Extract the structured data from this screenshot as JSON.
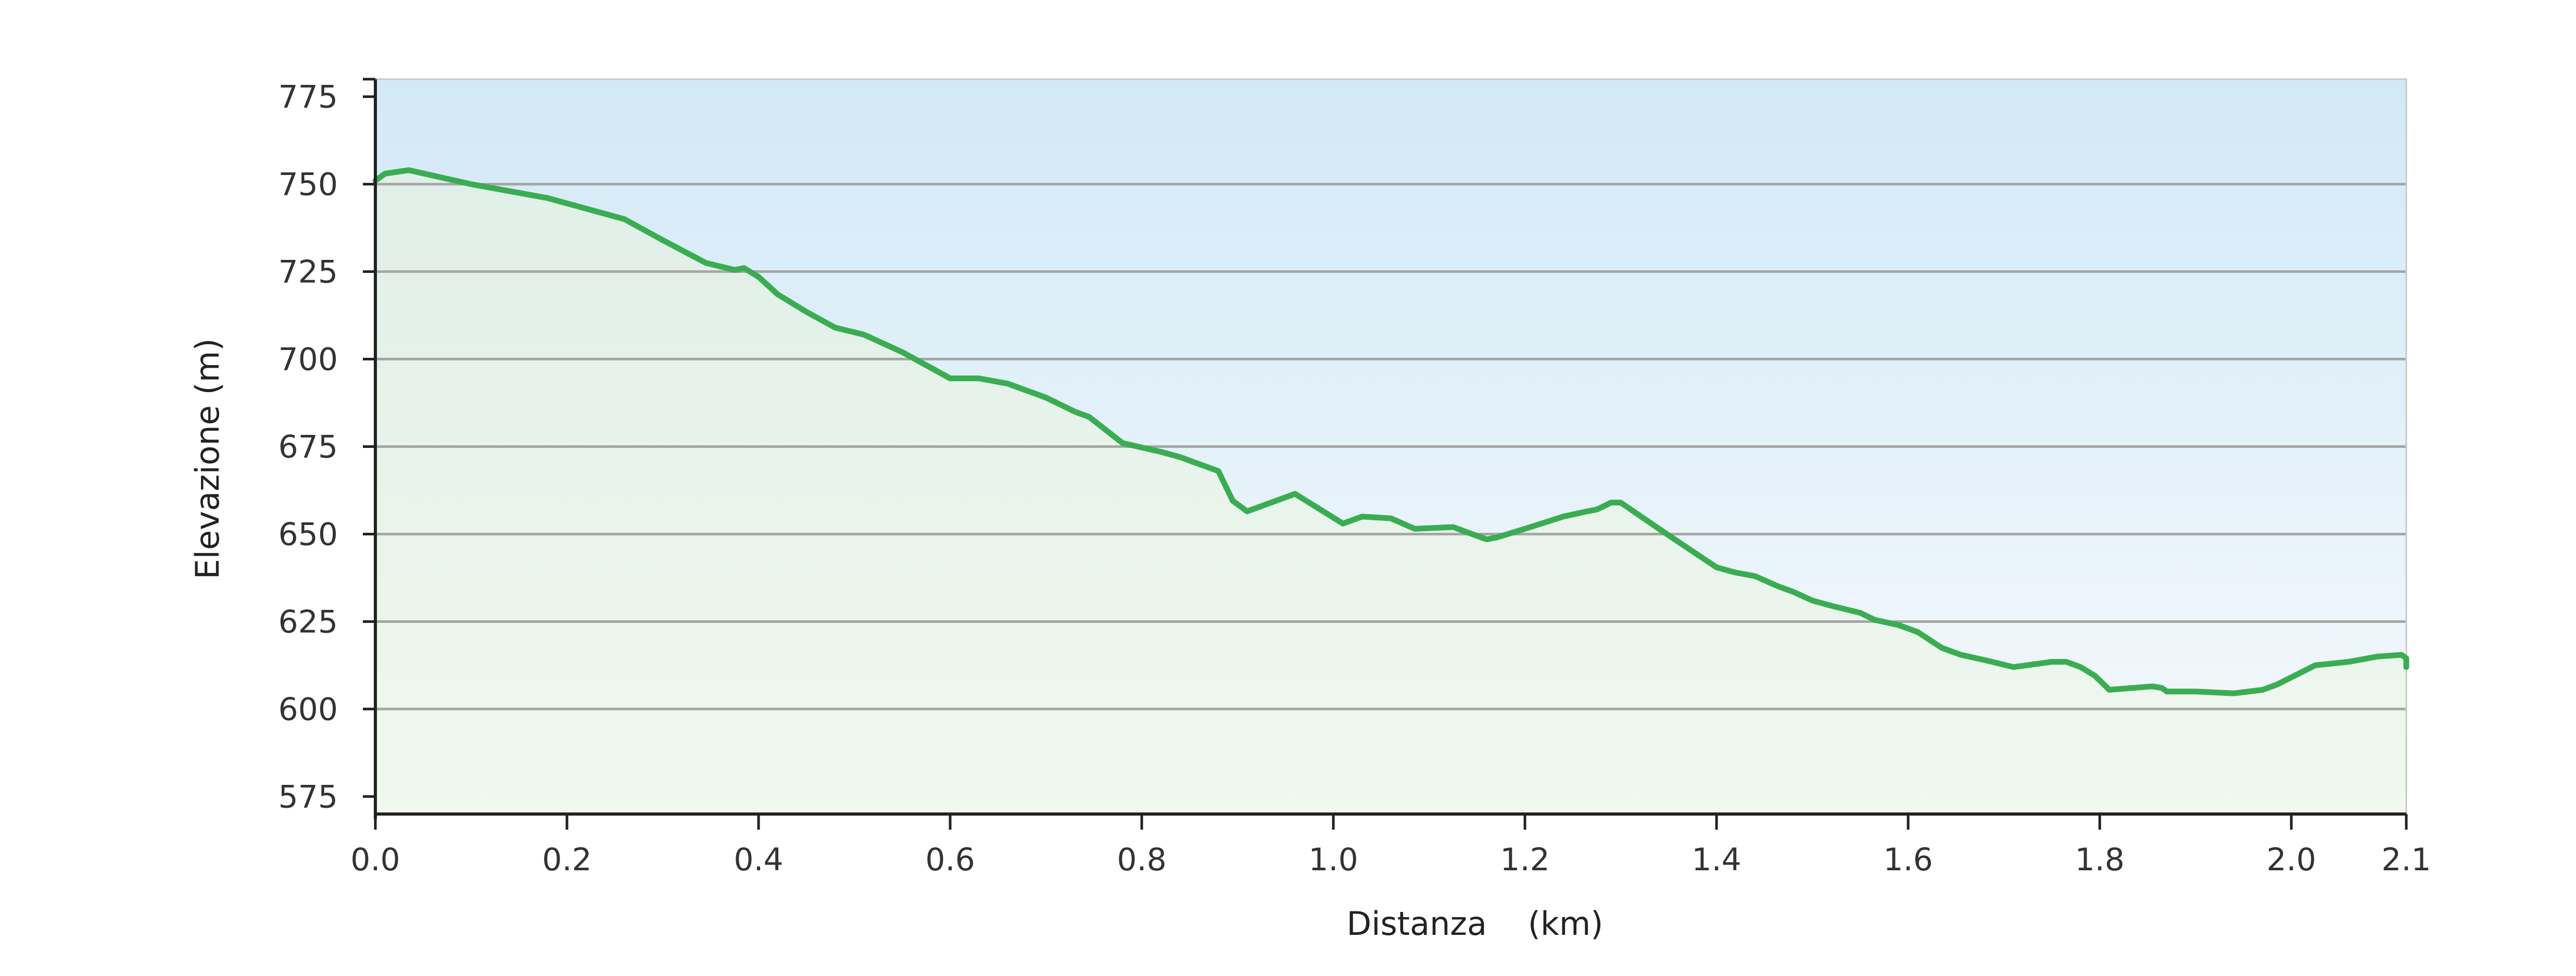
{
  "chart_data": {
    "type": "area",
    "xlabel": "Distanza    (km)",
    "ylabel": "Elevazione (m)",
    "xlim": [
      0,
      2.12
    ],
    "ylim": [
      570,
      780
    ],
    "x_ticks": [
      {
        "value": 0.0,
        "label": "0.0"
      },
      {
        "value": 0.2,
        "label": "0.2"
      },
      {
        "value": 0.4,
        "label": "0.4"
      },
      {
        "value": 0.6,
        "label": "0.6"
      },
      {
        "value": 0.8,
        "label": "0.8"
      },
      {
        "value": 1.0,
        "label": "1.0"
      },
      {
        "value": 1.2,
        "label": "1.2"
      },
      {
        "value": 1.4,
        "label": "1.4"
      },
      {
        "value": 1.6,
        "label": "1.6"
      },
      {
        "value": 1.8,
        "label": "1.8"
      },
      {
        "value": 2.0,
        "label": "2.0"
      },
      {
        "value": 2.12,
        "label": "2.1"
      }
    ],
    "y_ticks": [
      {
        "value": 575,
        "label": "575"
      },
      {
        "value": 600,
        "label": "600"
      },
      {
        "value": 625,
        "label": "625"
      },
      {
        "value": 650,
        "label": "650"
      },
      {
        "value": 675,
        "label": "675"
      },
      {
        "value": 700,
        "label": "700"
      },
      {
        "value": 725,
        "label": "725"
      },
      {
        "value": 750,
        "label": "750"
      },
      {
        "value": 775,
        "label": "775"
      }
    ],
    "gridlines_y": [
      600,
      625,
      650,
      675,
      700,
      725,
      750
    ],
    "grid": true,
    "colors": {
      "line": "#3aad52",
      "sky_top": "#d2e9f6",
      "sky_bottom": "#f6fafd",
      "fill_top": "#e0efe8",
      "fill_bottom": "#f1f8ee",
      "grid": "#a6a6a6",
      "axis": "#222222"
    },
    "series": [
      {
        "points": [
          [
            0.0,
            751
          ],
          [
            0.01,
            753
          ],
          [
            0.035,
            754
          ],
          [
            0.1,
            750
          ],
          [
            0.18,
            746
          ],
          [
            0.26,
            740
          ],
          [
            0.3,
            734
          ],
          [
            0.345,
            727.5
          ],
          [
            0.375,
            725.5
          ],
          [
            0.385,
            726
          ],
          [
            0.4,
            723.5
          ],
          [
            0.42,
            718.5
          ],
          [
            0.45,
            713.5
          ],
          [
            0.48,
            709
          ],
          [
            0.51,
            707
          ],
          [
            0.55,
            702
          ],
          [
            0.6,
            694.5
          ],
          [
            0.63,
            694.5
          ],
          [
            0.66,
            693
          ],
          [
            0.7,
            689
          ],
          [
            0.73,
            685
          ],
          [
            0.745,
            683.5
          ],
          [
            0.78,
            676
          ],
          [
            0.82,
            673.5
          ],
          [
            0.84,
            672
          ],
          [
            0.88,
            668
          ],
          [
            0.895,
            659.5
          ],
          [
            0.91,
            656.5
          ],
          [
            0.96,
            661.5
          ],
          [
            1.01,
            653
          ],
          [
            1.03,
            655
          ],
          [
            1.06,
            654.5
          ],
          [
            1.085,
            651.5
          ],
          [
            1.125,
            652
          ],
          [
            1.135,
            651
          ],
          [
            1.16,
            648.5
          ],
          [
            1.17,
            649
          ],
          [
            1.2,
            651.5
          ],
          [
            1.24,
            655
          ],
          [
            1.265,
            656.5
          ],
          [
            1.275,
            657
          ],
          [
            1.29,
            659
          ],
          [
            1.3,
            659
          ],
          [
            1.34,
            651.5
          ],
          [
            1.37,
            646
          ],
          [
            1.4,
            640.5
          ],
          [
            1.42,
            639
          ],
          [
            1.44,
            638
          ],
          [
            1.465,
            635
          ],
          [
            1.48,
            633.5
          ],
          [
            1.5,
            631
          ],
          [
            1.52,
            629.5
          ],
          [
            1.55,
            627.5
          ],
          [
            1.565,
            625.5
          ],
          [
            1.59,
            624
          ],
          [
            1.61,
            622
          ],
          [
            1.635,
            617.5
          ],
          [
            1.655,
            615.5
          ],
          [
            1.68,
            614
          ],
          [
            1.71,
            612
          ],
          [
            1.75,
            613.5
          ],
          [
            1.765,
            613.5
          ],
          [
            1.78,
            612
          ],
          [
            1.795,
            609.5
          ],
          [
            1.81,
            605.5
          ],
          [
            1.855,
            606.5
          ],
          [
            1.865,
            606
          ],
          [
            1.87,
            605
          ],
          [
            1.9,
            605
          ],
          [
            1.94,
            604.5
          ],
          [
            1.97,
            605.5
          ],
          [
            1.985,
            607
          ],
          [
            2.025,
            612.5
          ],
          [
            2.06,
            613.5
          ],
          [
            2.09,
            615
          ],
          [
            2.115,
            615.5
          ],
          [
            2.12,
            614.5
          ],
          [
            2.12,
            612
          ]
        ]
      }
    ]
  }
}
